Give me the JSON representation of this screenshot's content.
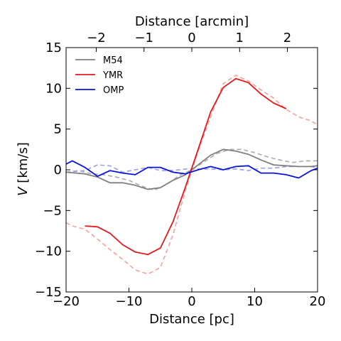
{
  "chart_data": {
    "type": "line",
    "xlabel": "Distance [pc]",
    "ylabel_main": "V",
    "ylabel_unit": " [km/s]",
    "top_xlabel": "Distance [arcmin]",
    "xlim": [
      -20,
      20
    ],
    "ylim": [
      -15,
      15
    ],
    "x_ticks": [
      -20,
      -10,
      0,
      10,
      20
    ],
    "x_tick_labels": [
      "−20",
      "−10",
      "0",
      "10",
      "20"
    ],
    "y_ticks": [
      -15,
      -10,
      -5,
      0,
      5,
      10,
      15
    ],
    "y_tick_labels": [
      "−15",
      "−10",
      "−5",
      "0",
      "5",
      "10",
      "15"
    ],
    "top_ticks": [
      -2,
      -1,
      0,
      1,
      2
    ],
    "top_tick_labels": [
      "−2",
      "−1",
      "0",
      "1",
      "2"
    ],
    "top_axis_pc_per_arcmin": 7.6,
    "grid": false,
    "legend_position": "top-left",
    "legend": [
      {
        "label": "M54",
        "color": "#808080"
      },
      {
        "label": "YMR",
        "color": "#e31a1c"
      },
      {
        "label": "OMP",
        "color": "#0a14d8"
      }
    ],
    "series": [
      {
        "name": "M54",
        "color": "#808080",
        "style": "solid",
        "x": [
          -20,
          -17,
          -15,
          -13,
          -11,
          -9,
          -7,
          -5,
          -3,
          -1,
          1,
          3,
          5,
          7,
          9,
          11,
          13,
          15,
          17,
          19,
          20
        ],
        "y": [
          -0.3,
          -0.5,
          -0.9,
          -1.6,
          -1.6,
          -1.9,
          -2.4,
          -2.2,
          -1.3,
          -0.6,
          0.6,
          1.8,
          2.5,
          2.3,
          1.9,
          1.2,
          0.6,
          0.5,
          0.4,
          0.4,
          0.5
        ]
      },
      {
        "name": "YMR",
        "color": "#e31a1c",
        "style": "solid",
        "x": [
          -17,
          -15,
          -13,
          -11,
          -9,
          -7,
          -5,
          -3,
          -1,
          1,
          3,
          5,
          7,
          9,
          11,
          13,
          15
        ],
        "y": [
          -6.9,
          -7.0,
          -7.8,
          -9.2,
          -10.1,
          -10.4,
          -9.6,
          -6.4,
          -2.1,
          2.5,
          7.1,
          10.1,
          11.2,
          10.7,
          9.3,
          8.2,
          7.5
        ]
      },
      {
        "name": "OMP",
        "color": "#0a14d8",
        "style": "solid",
        "x": [
          -20,
          -19,
          -17,
          -15,
          -13,
          -11,
          -9,
          -7,
          -5,
          -3,
          -1,
          1,
          3,
          5,
          7,
          9,
          11,
          13,
          15,
          17,
          19,
          20
        ],
        "y": [
          0.7,
          1.1,
          0.3,
          -0.8,
          -0.1,
          -0.4,
          -0.6,
          0.3,
          0.3,
          -0.3,
          -0.5,
          0.0,
          0.4,
          0.0,
          0.4,
          0.5,
          -0.4,
          -0.4,
          -0.6,
          -1.0,
          -0.1,
          0.2
        ]
      },
      {
        "name": "",
        "color": "#aaaaaa",
        "style": "dashed",
        "x": [
          -20,
          -18,
          -16,
          -14,
          -12,
          -10,
          -8,
          -6,
          -4,
          -2,
          0,
          2,
          4,
          6,
          8,
          10,
          12,
          14,
          16,
          18,
          20
        ],
        "y": [
          -0.3,
          -0.1,
          -0.5,
          -0.6,
          -0.9,
          -1.3,
          -2.0,
          -2.5,
          -1.8,
          -0.7,
          0.0,
          1.0,
          2.0,
          2.5,
          2.5,
          2.1,
          1.6,
          1.2,
          0.9,
          1.1,
          1.1
        ]
      },
      {
        "name": "",
        "color": "#f4a0a0",
        "style": "dashed",
        "x": [
          -20,
          -19,
          -17,
          -15,
          -13,
          -11,
          -9,
          -7,
          -5,
          -3,
          -1,
          1,
          3,
          5,
          7,
          9,
          11,
          13,
          15,
          17,
          19,
          20
        ],
        "y": [
          -6.5,
          -6.9,
          -7.3,
          -8.5,
          -9.8,
          -11.0,
          -12.3,
          -12.8,
          -12.0,
          -8.0,
          -2.5,
          2.3,
          6.5,
          10.6,
          11.6,
          10.9,
          9.8,
          8.8,
          7.4,
          6.5,
          6.0,
          5.5
        ]
      },
      {
        "name": "",
        "color": "#9c9cf0",
        "style": "dashed",
        "x": [
          -20,
          -17,
          -15,
          -13,
          -11,
          -9,
          -7,
          -5,
          -3,
          -1,
          1,
          3,
          5,
          7,
          9,
          11,
          13,
          15,
          17,
          19,
          20
        ],
        "y": [
          -0.3,
          -0.1,
          0.6,
          0.5,
          -0.3,
          0.0,
          0.3,
          -0.1,
          -0.1,
          0.1,
          0.1,
          0.1,
          0.0,
          0.1,
          -0.1,
          0.2,
          0.2,
          0.4,
          0.4,
          0.4,
          0.2
        ]
      }
    ]
  }
}
